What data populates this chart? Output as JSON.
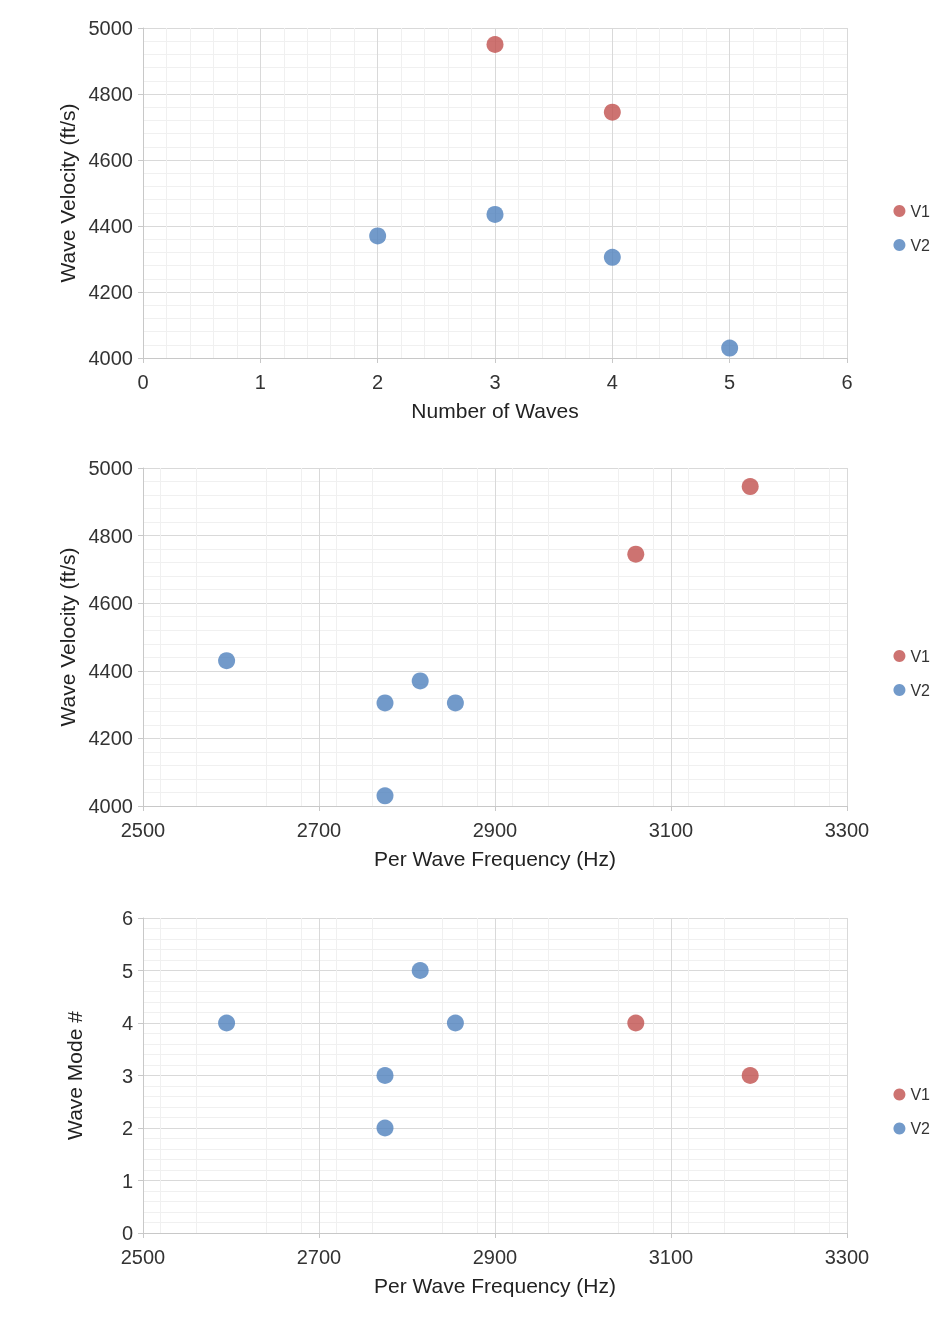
{
  "chart_data": [
    {
      "type": "scatter",
      "xlabel": "Number of Waves",
      "ylabel": "Wave Velocity (ft/s)",
      "xlim": [
        0,
        6
      ],
      "xticks": [
        0,
        1,
        2,
        3,
        4,
        5,
        6
      ],
      "ylim": [
        4000,
        5000
      ],
      "yticks": [
        4000,
        4200,
        4400,
        4600,
        4800,
        5000
      ],
      "grid": true,
      "legend": "right",
      "marker": "circle",
      "series": [
        {
          "name": "V1",
          "color": "#c0504d",
          "x": [
            3,
            4
          ],
          "values": [
            4950,
            4745
          ]
        },
        {
          "name": "V2",
          "color": "#4f81bd",
          "x": [
            2,
            3,
            4,
            5
          ],
          "values": [
            4370,
            4435,
            4305,
            4030
          ]
        }
      ]
    },
    {
      "type": "scatter",
      "xlabel": "Per Wave Frequency (Hz)",
      "ylabel": "Wave Velocity (ft/s)",
      "xlim": [
        2500,
        3300
      ],
      "xticks": [
        2500,
        2700,
        2900,
        3100,
        3300
      ],
      "ylim": [
        4000,
        5000
      ],
      "yticks": [
        4000,
        4200,
        4400,
        4600,
        4800,
        5000
      ],
      "grid": true,
      "legend": "right",
      "marker": "circle",
      "series": [
        {
          "name": "V1",
          "color": "#c0504d",
          "x": [
            3190,
            3060
          ],
          "values": [
            4945,
            4745
          ]
        },
        {
          "name": "V2",
          "color": "#4f81bd",
          "x": [
            2595,
            2815,
            2855,
            2775,
            2775
          ],
          "values": [
            4430,
            4370,
            4305,
            4305,
            4030
          ]
        }
      ]
    },
    {
      "type": "scatter",
      "xlabel": "Per Wave Frequency (Hz)",
      "ylabel": "Wave Mode #",
      "xlim": [
        2500,
        3300
      ],
      "xticks": [
        2500,
        2700,
        2900,
        3100,
        3300
      ],
      "ylim": [
        0,
        6
      ],
      "yticks": [
        0,
        1,
        2,
        3,
        4,
        5,
        6
      ],
      "grid": true,
      "legend": "right",
      "marker": "circle",
      "series": [
        {
          "name": "V1",
          "color": "#c0504d",
          "x": [
            3060,
            3190
          ],
          "values": [
            4,
            3
          ]
        },
        {
          "name": "V2",
          "color": "#4f81bd",
          "x": [
            2595,
            2815,
            2855,
            2775,
            2775
          ],
          "values": [
            4,
            5,
            4,
            3,
            2
          ]
        }
      ]
    }
  ]
}
